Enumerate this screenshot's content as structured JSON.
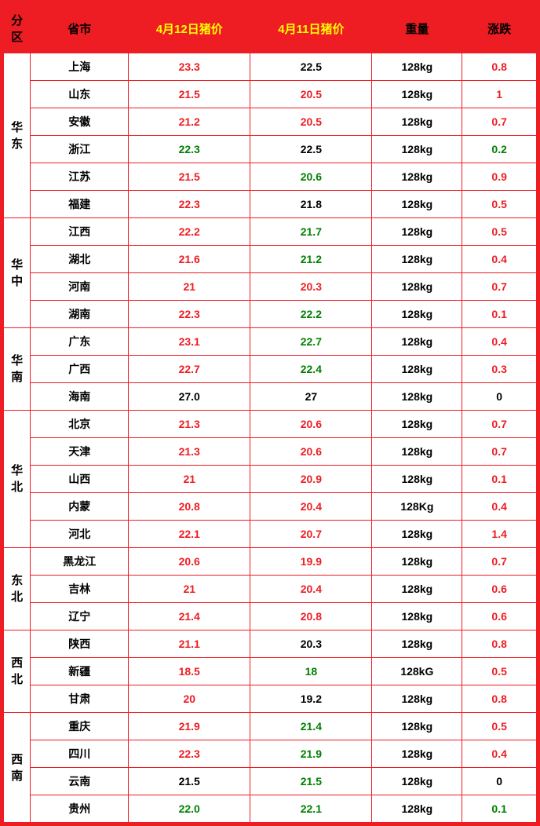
{
  "headers": {
    "region": "分区",
    "province": "省市",
    "price12": "4月12日猪价",
    "price11": "4月11日猪价",
    "weight": "重量",
    "change": "涨跌"
  },
  "colors": {
    "red": "#ee1d23",
    "green": "#008000",
    "black": "#000000",
    "yellow": "#ffff00",
    "border": "#ee1d23"
  },
  "col_widths": [
    "34px",
    "124px",
    "154px",
    "154px",
    "114px",
    "94px"
  ],
  "regions": [
    {
      "name_lines": [
        "华",
        "东"
      ],
      "rows": [
        {
          "province": "上海",
          "p12": "23.3",
          "c12": "red",
          "p11": "22.5",
          "c11": "black",
          "weight": "128kg",
          "chg": "0.8",
          "cchg": "red"
        },
        {
          "province": "山东",
          "p12": "21.5",
          "c12": "red",
          "p11": "20.5",
          "c11": "red",
          "weight": "128kg",
          "chg": "1",
          "cchg": "red"
        },
        {
          "province": "安徽",
          "p12": "21.2",
          "c12": "red",
          "p11": "20.5",
          "c11": "red",
          "weight": "128kg",
          "chg": "0.7",
          "cchg": "red"
        },
        {
          "province": "浙江",
          "p12": "22.3",
          "c12": "green",
          "p11": "22.5",
          "c11": "black",
          "weight": "128kg",
          "chg": "0.2",
          "cchg": "green"
        },
        {
          "province": "江苏",
          "p12": "21.5",
          "c12": "red",
          "p11": "20.6",
          "c11": "green",
          "weight": "128kg",
          "chg": "0.9",
          "cchg": "red"
        },
        {
          "province": "福建",
          "p12": "22.3",
          "c12": "red",
          "p11": "21.8",
          "c11": "black",
          "weight": "128kg",
          "chg": "0.5",
          "cchg": "red"
        }
      ]
    },
    {
      "name_lines": [
        "华",
        "中"
      ],
      "rows": [
        {
          "province": "江西",
          "p12": "22.2",
          "c12": "red",
          "p11": "21.7",
          "c11": "green",
          "weight": "128kg",
          "chg": "0.5",
          "cchg": "red"
        },
        {
          "province": "湖北",
          "p12": "21.6",
          "c12": "red",
          "p11": "21.2",
          "c11": "green",
          "weight": "128kg",
          "chg": "0.4",
          "cchg": "red"
        },
        {
          "province": "河南",
          "p12": "21",
          "c12": "red",
          "p11": "20.3",
          "c11": "red",
          "weight": "128kg",
          "chg": "0.7",
          "cchg": "red"
        },
        {
          "province": "湖南",
          "p12": "22.3",
          "c12": "red",
          "p11": "22.2",
          "c11": "green",
          "weight": "128kg",
          "chg": "0.1",
          "cchg": "red"
        }
      ]
    },
    {
      "name_lines": [
        "华",
        "南"
      ],
      "rows": [
        {
          "province": "广东",
          "p12": "23.1",
          "c12": "red",
          "p11": "22.7",
          "c11": "green",
          "weight": "128kg",
          "chg": "0.4",
          "cchg": "red"
        },
        {
          "province": "广西",
          "p12": "22.7",
          "c12": "red",
          "p11": "22.4",
          "c11": "green",
          "weight": "128kg",
          "chg": "0.3",
          "cchg": "red"
        },
        {
          "province": "海南",
          "p12": "27.0",
          "c12": "black",
          "p11": "27",
          "c11": "black",
          "weight": "128kg",
          "chg": "0",
          "cchg": "black"
        }
      ]
    },
    {
      "name_lines": [
        "华",
        "北"
      ],
      "rows": [
        {
          "province": "北京",
          "p12": "21.3",
          "c12": "red",
          "p11": "20.6",
          "c11": "red",
          "weight": "128kg",
          "chg": "0.7",
          "cchg": "red"
        },
        {
          "province": "天津",
          "p12": "21.3",
          "c12": "red",
          "p11": "20.6",
          "c11": "red",
          "weight": "128kg",
          "chg": "0.7",
          "cchg": "red"
        },
        {
          "province": "山西",
          "p12": "21",
          "c12": "red",
          "p11": "20.9",
          "c11": "red",
          "weight": "128kg",
          "chg": "0.1",
          "cchg": "red"
        },
        {
          "province": "内蒙",
          "p12": "20.8",
          "c12": "red",
          "p11": "20.4",
          "c11": "red",
          "weight": "128Kg",
          "chg": "0.4",
          "cchg": "red"
        },
        {
          "province": "河北",
          "p12": "22.1",
          "c12": "red",
          "p11": "20.7",
          "c11": "red",
          "weight": "128kg",
          "chg": "1.4",
          "cchg": "red"
        }
      ]
    },
    {
      "name_lines": [
        "东",
        "北"
      ],
      "rows": [
        {
          "province": "黑龙江",
          "p12": "20.6",
          "c12": "red",
          "p11": "19.9",
          "c11": "red",
          "weight": "128kg",
          "chg": "0.7",
          "cchg": "red"
        },
        {
          "province": "吉林",
          "p12": "21",
          "c12": "red",
          "p11": "20.4",
          "c11": "red",
          "weight": "128kg",
          "chg": "0.6",
          "cchg": "red"
        },
        {
          "province": "辽宁",
          "p12": "21.4",
          "c12": "red",
          "p11": "20.8",
          "c11": "red",
          "weight": "128kg",
          "chg": "0.6",
          "cchg": "red"
        }
      ]
    },
    {
      "name_lines": [
        "西",
        "北"
      ],
      "rows": [
        {
          "province": "陕西",
          "p12": "21.1",
          "c12": "red",
          "p11": "20.3",
          "c11": "black",
          "weight": "128kg",
          "chg": "0.8",
          "cchg": "red"
        },
        {
          "province": "新疆",
          "p12": "18.5",
          "c12": "red",
          "p11": "18",
          "c11": "green",
          "weight": "128kG",
          "chg": "0.5",
          "cchg": "red"
        },
        {
          "province": "甘肃",
          "p12": "20",
          "c12": "red",
          "p11": "19.2",
          "c11": "black",
          "weight": "128kg",
          "chg": "0.8",
          "cchg": "red"
        }
      ]
    },
    {
      "name_lines": [
        "西",
        "南"
      ],
      "rows": [
        {
          "province": "重庆",
          "p12": "21.9",
          "c12": "red",
          "p11": "21.4",
          "c11": "green",
          "weight": "128kg",
          "chg": "0.5",
          "cchg": "red"
        },
        {
          "province": "四川",
          "p12": "22.3",
          "c12": "red",
          "p11": "21.9",
          "c11": "green",
          "weight": "128kg",
          "chg": "0.4",
          "cchg": "red"
        },
        {
          "province": "云南",
          "p12": "21.5",
          "c12": "black",
          "p11": "21.5",
          "c11": "green",
          "weight": "128kg",
          "chg": "0",
          "cchg": "black"
        },
        {
          "province": "贵州",
          "p12": "22.0",
          "c12": "green",
          "p11": "22.1",
          "c11": "green",
          "weight": "128kg",
          "chg": "0.1",
          "cchg": "green"
        }
      ]
    }
  ]
}
